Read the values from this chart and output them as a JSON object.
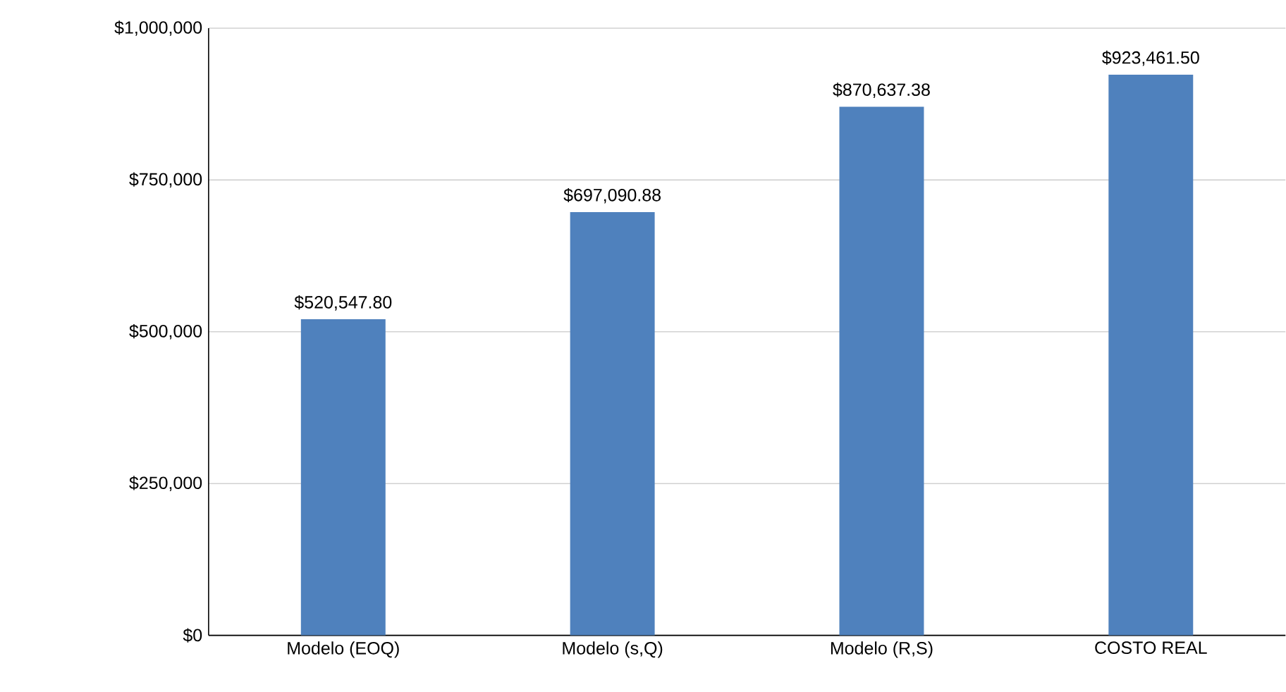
{
  "chart_data": {
    "type": "bar",
    "categories": [
      "Modelo (EOQ)",
      "Modelo (s,Q)",
      "Modelo (R,S)",
      "COSTO REAL"
    ],
    "values": [
      520547.8,
      697090.88,
      870637.38,
      923461.5
    ],
    "value_labels": [
      "$520,547.80",
      "$697,090.88",
      "$870,637.38",
      "$923,461.50"
    ],
    "color": "#4f81bd",
    "ylim": [
      0,
      1000000
    ],
    "yticks": [
      {
        "value": 0,
        "label": "$0"
      },
      {
        "value": 250000,
        "label": "$250,000"
      },
      {
        "value": 500000,
        "label": "$500,000"
      },
      {
        "value": 750000,
        "label": "$750,000"
      },
      {
        "value": 1000000,
        "label": "$1,000,000"
      }
    ],
    "grid": "y"
  }
}
